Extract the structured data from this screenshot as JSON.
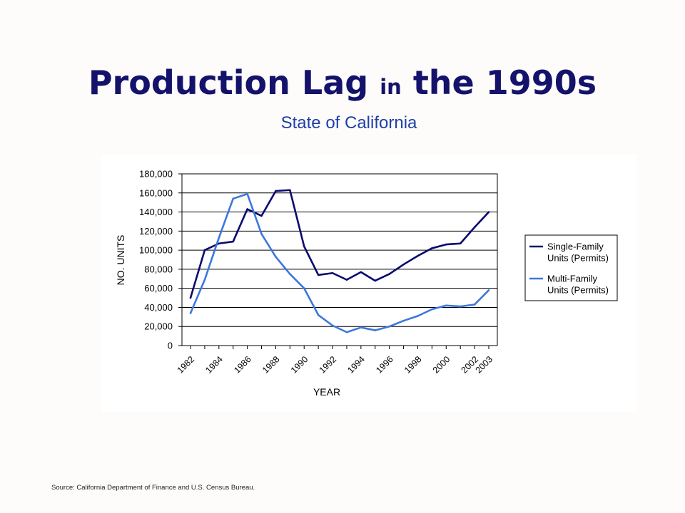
{
  "slide": {
    "title_part1": "Production Lag",
    "title_part2": "in",
    "title_part3": "the 1990s",
    "subtitle": "State of California",
    "source": "Source: California Department of Finance and U.S. Census Bureau."
  },
  "colors": {
    "title": "#14126b",
    "subtitle": "#1f3fa8",
    "single_family": "#0a0a6e",
    "multi_family": "#3c78dc"
  },
  "chart_data": {
    "type": "line",
    "xlabel": "YEAR",
    "ylabel": "NO. UNITS",
    "ylim": [
      0,
      180000
    ],
    "yticks": [
      0,
      20000,
      40000,
      60000,
      80000,
      100000,
      120000,
      140000,
      160000,
      180000
    ],
    "ytick_labels": [
      "0",
      "20,000",
      "40,000",
      "60,000",
      "80,000",
      "100,000",
      "120,000",
      "140,000",
      "160,000",
      "180,000"
    ],
    "xtick_labels": [
      "1982",
      "1984",
      "1986",
      "1988",
      "1990",
      "1992",
      "1994",
      "1996",
      "1998",
      "2000",
      "2002",
      "2003"
    ],
    "x": [
      1982,
      1983,
      1984,
      1985,
      1986,
      1987,
      1988,
      1989,
      1990,
      1991,
      1992,
      1993,
      1994,
      1995,
      1996,
      1997,
      1998,
      1999,
      2000,
      2001,
      2002,
      2003
    ],
    "grid": "horizontal",
    "legend_position": "right",
    "series": [
      {
        "name": "Single-Family Units (Permits)",
        "legend_line1": "Single-Family",
        "legend_line2": "Units (Permits)",
        "color": "#0a0a6e",
        "values": [
          50000,
          100000,
          107000,
          109000,
          143000,
          136000,
          162000,
          163000,
          104000,
          74000,
          76000,
          69000,
          77000,
          68000,
          75000,
          85000,
          94000,
          102000,
          106000,
          107000,
          124000,
          140000
        ]
      },
      {
        "name": "Multi-Family Units (Permits)",
        "legend_line1": "Multi-Family",
        "legend_line2": "Units (Permits)",
        "color": "#3c78dc",
        "values": [
          34000,
          69000,
          113000,
          154000,
          159000,
          117000,
          93000,
          75000,
          60000,
          32000,
          21000,
          14000,
          19000,
          16000,
          20000,
          26000,
          31000,
          38000,
          42000,
          41000,
          43000,
          58000
        ]
      }
    ]
  }
}
